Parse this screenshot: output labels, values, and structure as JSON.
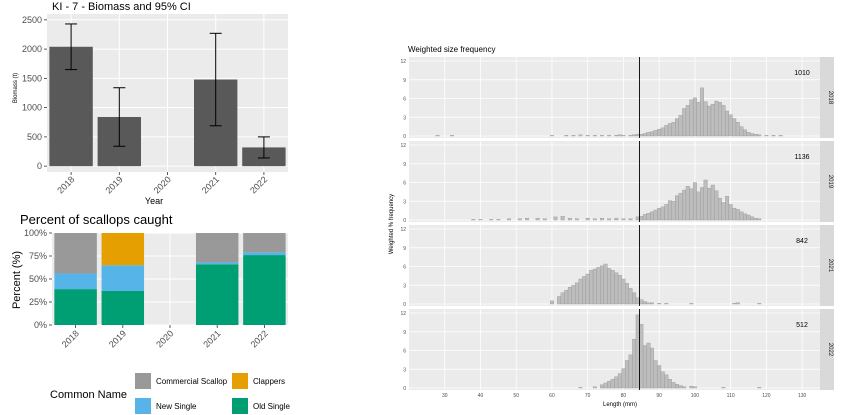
{
  "chart_data": [
    {
      "type": "bar",
      "title": "KI - 7  - Biomass and 95% CI",
      "xlabel": "Year",
      "ylabel": "Biomass (t)",
      "categories": [
        "2018",
        "2019",
        "2020",
        "2021",
        "2022"
      ],
      "values": [
        2040,
        840,
        null,
        1480,
        320
      ],
      "ci_low": [
        1650,
        340,
        null,
        690,
        140
      ],
      "ci_high": [
        2430,
        1340,
        null,
        2270,
        500
      ],
      "ylim": [
        -100,
        2600
      ],
      "yticks": [
        "0",
        "500",
        "1000",
        "1500",
        "2000",
        "2500"
      ],
      "colors": {
        "bar": "#595959",
        "panel": "#ebebeb",
        "grid": "#ffffff"
      }
    },
    {
      "type": "bar",
      "stacked": true,
      "title": "Percent of scallops caught",
      "ylabel": "Percent (%)",
      "categories": [
        "2018",
        "2019",
        "2020",
        "2021",
        "2022"
      ],
      "yticks": [
        "0%",
        "25%",
        "50%",
        "75%",
        "100%"
      ],
      "legend_title": "Common Name",
      "legend_position": "bottom",
      "series": [
        {
          "name": "Old Single",
          "color": "#009E73",
          "values": [
            39,
            37,
            null,
            66,
            76
          ]
        },
        {
          "name": "New Single",
          "color": "#56B4E9",
          "values": [
            17,
            28,
            null,
            2,
            3
          ]
        },
        {
          "name": "Clappers",
          "color": "#E69F00",
          "values": [
            0,
            35,
            null,
            0,
            0
          ]
        },
        {
          "name": "Commercial Scallop",
          "color": "#999999",
          "values": [
            44,
            0,
            null,
            32,
            21
          ]
        }
      ],
      "legend_order": [
        "Commercial Scallop",
        "Clappers",
        "New Single",
        "Old Single"
      ]
    },
    {
      "type": "bar",
      "title": "Weighted size frequency",
      "xlabel": "Length (mm)",
      "ylabel": "Weighted % frequency",
      "xlim": [
        20,
        135
      ],
      "xticks": [
        "30",
        "40",
        "50",
        "60",
        "70",
        "80",
        "90",
        "100",
        "110",
        "120",
        "130"
      ],
      "ylim": [
        0,
        12
      ],
      "yticks": [
        "0",
        "3",
        "6",
        "9",
        "12"
      ],
      "reference_line_x": 84.5,
      "colors": {
        "bar": "#bdbdbd",
        "bar_border": "#8c8c8c",
        "panel": "#ebebeb",
        "strip": "#d9d9d9"
      },
      "facets": [
        {
          "strip": "2018",
          "count": "1010",
          "points": [
            [
              28,
              0.1
            ],
            [
              32,
              0.1
            ],
            [
              60,
              0.1
            ],
            [
              64,
              0.1
            ],
            [
              66,
              0.1
            ],
            [
              68,
              0.2
            ],
            [
              70,
              0.1
            ],
            [
              72,
              0.1
            ],
            [
              74,
              0.1
            ],
            [
              76,
              0.1
            ],
            [
              78,
              0.1
            ],
            [
              79,
              0.2
            ],
            [
              80,
              0.1
            ],
            [
              82,
              0.1
            ],
            [
              83,
              0.2
            ],
            [
              84,
              0.3
            ],
            [
              85,
              0.3
            ],
            [
              86,
              0.4
            ],
            [
              87,
              0.6
            ],
            [
              88,
              0.7
            ],
            [
              89,
              0.9
            ],
            [
              90,
              1.1
            ],
            [
              91,
              1.3
            ],
            [
              92,
              1.7
            ],
            [
              93,
              2.0
            ],
            [
              94,
              2.2
            ],
            [
              95,
              2.8
            ],
            [
              96,
              3.3
            ],
            [
              97,
              4.4
            ],
            [
              98,
              4.9
            ],
            [
              99,
              5.8
            ],
            [
              100,
              6.1
            ],
            [
              101,
              5.4
            ],
            [
              102,
              7.7
            ],
            [
              103,
              5.5
            ],
            [
              104,
              4.8
            ],
            [
              105,
              5.1
            ],
            [
              106,
              5.6
            ],
            [
              107,
              5.4
            ],
            [
              108,
              4.9
            ],
            [
              109,
              4.0
            ],
            [
              110,
              3.4
            ],
            [
              111,
              2.8
            ],
            [
              112,
              2.2
            ],
            [
              113,
              1.5
            ],
            [
              114,
              1.0
            ],
            [
              115,
              0.6
            ],
            [
              116,
              0.4
            ],
            [
              117,
              0.3
            ],
            [
              118,
              0.2
            ],
            [
              120,
              0.1
            ],
            [
              122,
              0.1
            ],
            [
              124,
              0.1
            ]
          ]
        },
        {
          "strip": "2019",
          "count": "1136",
          "points": [
            [
              38,
              0.1
            ],
            [
              40,
              0.1
            ],
            [
              43,
              0.1
            ],
            [
              45,
              0.1
            ],
            [
              48,
              0.2
            ],
            [
              51,
              0.2
            ],
            [
              53,
              0.3
            ],
            [
              56,
              0.3
            ],
            [
              58,
              0.2
            ],
            [
              61,
              0.5
            ],
            [
              63,
              0.6
            ],
            [
              65,
              0.3
            ],
            [
              67,
              0.2
            ],
            [
              70,
              0.3
            ],
            [
              72,
              0.2
            ],
            [
              74,
              0.3
            ],
            [
              76,
              0.2
            ],
            [
              78,
              0.3
            ],
            [
              80,
              0.2
            ],
            [
              82,
              0.2
            ],
            [
              84,
              0.5
            ],
            [
              85,
              0.6
            ],
            [
              86,
              0.9
            ],
            [
              87,
              1.1
            ],
            [
              88,
              1.3
            ],
            [
              89,
              1.6
            ],
            [
              90,
              1.9
            ],
            [
              91,
              2.1
            ],
            [
              92,
              2.5
            ],
            [
              93,
              3.1
            ],
            [
              94,
              3.0
            ],
            [
              95,
              3.9
            ],
            [
              96,
              4.3
            ],
            [
              97,
              4.8
            ],
            [
              98,
              5.4
            ],
            [
              99,
              5.0
            ],
            [
              100,
              6.0
            ],
            [
              101,
              4.5
            ],
            [
              102,
              5.2
            ],
            [
              103,
              6.4
            ],
            [
              104,
              5.1
            ],
            [
              105,
              5.6
            ],
            [
              106,
              4.7
            ],
            [
              107,
              3.5
            ],
            [
              108,
              2.8
            ],
            [
              109,
              3.8
            ],
            [
              110,
              2.5
            ],
            [
              111,
              1.9
            ],
            [
              112,
              1.7
            ],
            [
              113,
              1.3
            ],
            [
              114,
              1.0
            ],
            [
              115,
              0.8
            ],
            [
              116,
              0.5
            ],
            [
              117,
              0.3
            ],
            [
              118,
              0.2
            ]
          ]
        },
        {
          "strip": "2021",
          "count": "842",
          "points": [
            [
              60,
              0.5
            ],
            [
              62,
              1.2
            ],
            [
              63,
              1.8
            ],
            [
              64,
              2.2
            ],
            [
              65,
              2.7
            ],
            [
              66,
              3.0
            ],
            [
              67,
              3.4
            ],
            [
              68,
              4.0
            ],
            [
              69,
              4.4
            ],
            [
              70,
              4.8
            ],
            [
              71,
              5.4
            ],
            [
              72,
              5.6
            ],
            [
              73,
              5.9
            ],
            [
              74,
              6.1
            ],
            [
              75,
              6.4
            ],
            [
              76,
              5.7
            ],
            [
              77,
              5.4
            ],
            [
              78,
              5.0
            ],
            [
              79,
              4.6
            ],
            [
              80,
              4.0
            ],
            [
              81,
              3.3
            ],
            [
              82,
              2.5
            ],
            [
              83,
              1.8
            ],
            [
              84,
              1.0
            ],
            [
              85,
              0.7
            ],
            [
              86,
              0.4
            ],
            [
              87,
              0.2
            ],
            [
              88,
              0.2
            ],
            [
              90,
              0.1
            ],
            [
              92,
              0.1
            ],
            [
              99,
              0.1
            ],
            [
              111,
              0.1
            ],
            [
              112,
              0.2
            ],
            [
              118,
              0.1
            ]
          ]
        },
        {
          "strip": "2022",
          "count": "512",
          "points": [
            [
              68,
              0.1
            ],
            [
              72,
              0.2
            ],
            [
              74,
              0.5
            ],
            [
              75,
              0.8
            ],
            [
              76,
              1.1
            ],
            [
              77,
              1.4
            ],
            [
              78,
              1.8
            ],
            [
              79,
              2.3
            ],
            [
              80,
              3.1
            ],
            [
              81,
              4.4
            ],
            [
              82,
              5.3
            ],
            [
              83,
              7.8
            ],
            [
              84,
              11.7
            ],
            [
              85,
              10.2
            ],
            [
              86,
              6.8
            ],
            [
              87,
              7.2
            ],
            [
              88,
              6.4
            ],
            [
              89,
              4.4
            ],
            [
              90,
              3.6
            ],
            [
              91,
              2.6
            ],
            [
              92,
              2.1
            ],
            [
              93,
              1.4
            ],
            [
              94,
              0.9
            ],
            [
              95,
              0.6
            ],
            [
              96,
              0.4
            ],
            [
              97,
              0.2
            ],
            [
              99,
              0.3
            ],
            [
              100,
              0.2
            ],
            [
              108,
              0.1
            ],
            [
              118,
              0.1
            ]
          ]
        }
      ]
    }
  ]
}
